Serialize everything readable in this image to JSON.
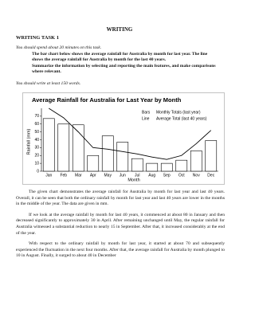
{
  "header": {
    "title": "WRITING",
    "subtitle": "WRITING TASK 1"
  },
  "instructions": {
    "time": "You should spend about 20 minutes on this task.",
    "task": [
      "The bar chart below shows the average rainfall for Australia by month for last year. The line shows the average rainfall for Australia by month for the last 40 years.",
      "Summarize the information by selecting and reporting the main features, and make comparisons where relevant."
    ],
    "length": "You should write at least 150 words."
  },
  "chart_data": {
    "type": "bar-line",
    "title": "Average Rainfall for Australia for Last Year by Month",
    "y_label": "Rainfall (mm)",
    "x_label": "Month",
    "categories": [
      "Jan",
      "Feb",
      "Mar",
      "Apr",
      "May",
      "Jun",
      "Jul",
      "Aug",
      "Sep",
      "Oct",
      "Nov",
      "Dec"
    ],
    "legend_labels": [
      "Bars",
      "Line"
    ],
    "series": [
      {
        "name": "Monthly Totals (last year)",
        "color": "#ffffff",
        "values": [
          67,
          60,
          59,
          20,
          45,
          37,
          16,
          10,
          10,
          14,
          26,
          39
        ]
      },
      {
        "name": "Average Total (last 40 years)",
        "color": "#000000",
        "values": [
          80,
          68,
          50,
          30,
          28,
          25,
          22,
          18,
          15,
          20,
          35,
          52
        ]
      }
    ],
    "ylim": [
      0,
      80
    ],
    "yticks": [
      0,
      10,
      20,
      30,
      40,
      50,
      60,
      70
    ]
  },
  "body": [
    "The given chart demonstrates the average rainfall for Australia by month for last year and last 40 years. Overall, it can be seen that both the ordinary rainfall by month for last year and last 40 years are lower in the months in the middle of the year. The data are given in mm.",
    "If we look at the average rainfall by month for last 40 years, it commenced at about 80 in January and then decreased significantly to approximately 30 in April. After remaining unchanged until May, the regular rainfall for Australia witnessed a substantial reduction to nearly 15 in September. After that, it increased considerably at the end of the year.",
    "With respect to the ordinary rainfall by month for last year, it started at about 70 and subsequently experienced the fluctuation in the next four months. After that, the average rainfall for Australia by month plunged to 10 in August. Finally, it surged to about 40 in December"
  ]
}
